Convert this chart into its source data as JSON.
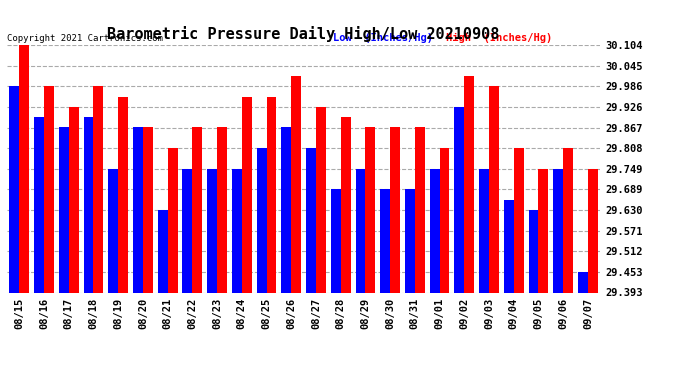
{
  "title": "Barometric Pressure Daily High/Low 20210908",
  "copyright": "Copyright 2021 Cartronics.com",
  "legend_low": "Low  (Inches/Hg)",
  "legend_high": "High  (Inches/Hg)",
  "dates": [
    "08/15",
    "08/16",
    "08/17",
    "08/18",
    "08/19",
    "08/20",
    "08/21",
    "08/22",
    "08/23",
    "08/24",
    "08/25",
    "08/26",
    "08/27",
    "08/28",
    "08/29",
    "08/30",
    "08/31",
    "09/01",
    "09/02",
    "09/03",
    "09/04",
    "09/05",
    "09/06",
    "09/07"
  ],
  "low_values": [
    29.986,
    29.897,
    29.867,
    29.897,
    29.749,
    29.867,
    29.63,
    29.749,
    29.749,
    29.749,
    29.808,
    29.867,
    29.808,
    29.689,
    29.749,
    29.689,
    29.689,
    29.749,
    29.926,
    29.749,
    29.66,
    29.63,
    29.749,
    29.453
  ],
  "high_values": [
    30.104,
    29.986,
    29.926,
    29.986,
    29.956,
    29.867,
    29.808,
    29.867,
    29.867,
    29.956,
    29.956,
    30.015,
    29.926,
    29.897,
    29.867,
    29.867,
    29.867,
    29.808,
    30.015,
    29.986,
    29.808,
    29.749,
    29.808,
    29.749
  ],
  "ylim_min": 29.393,
  "ylim_max": 30.104,
  "yticks": [
    29.393,
    29.453,
    29.512,
    29.571,
    29.63,
    29.689,
    29.749,
    29.808,
    29.867,
    29.926,
    29.986,
    30.045,
    30.104
  ],
  "low_color": "#0000ff",
  "high_color": "#ff0000",
  "background_color": "#ffffff",
  "grid_color": "#aaaaaa",
  "title_fontsize": 11,
  "tick_fontsize": 7.5,
  "bar_width": 0.4
}
